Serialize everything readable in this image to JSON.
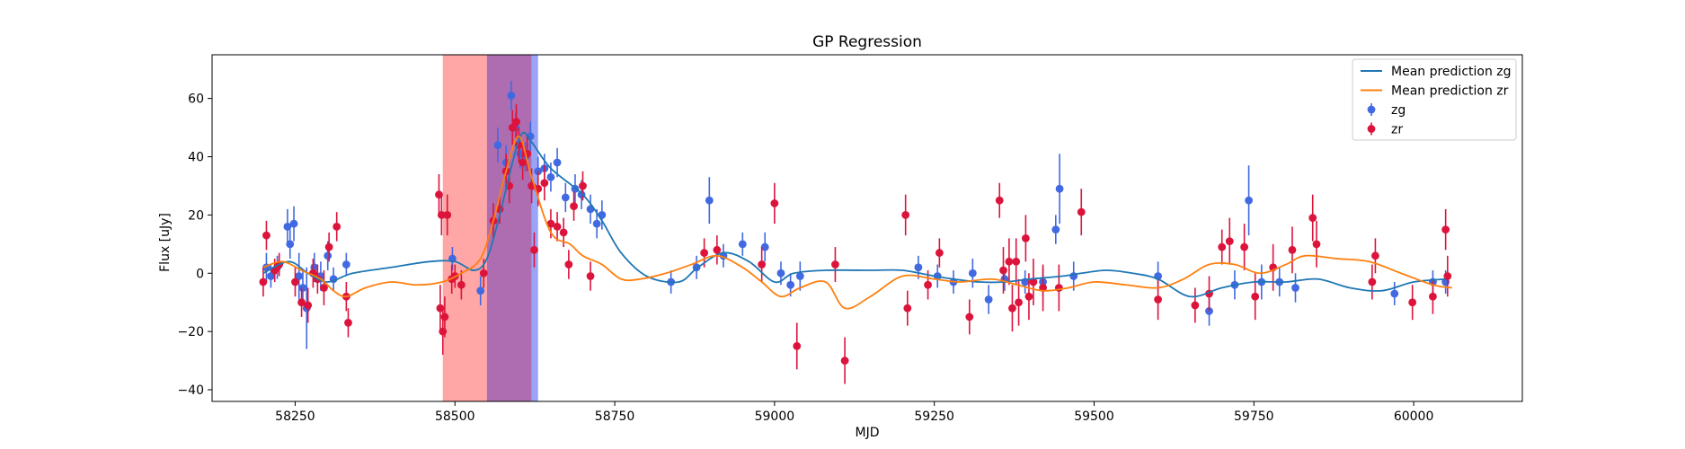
{
  "chart_data": {
    "type": "scatter",
    "title": "GP Regression",
    "xlabel": "MJD",
    "ylabel": "Flux [uJy]",
    "xlim": [
      58120,
      60170
    ],
    "ylim": [
      -44,
      75
    ],
    "xticks": [
      58250,
      58500,
      58750,
      59000,
      59250,
      59500,
      59750,
      60000
    ],
    "yticks": [
      -40,
      -20,
      0,
      20,
      40,
      60
    ],
    "grid": false,
    "legend_position": "top-right",
    "colors": {
      "zg_line": "#1f77b4",
      "zr_line": "#ff7f0e",
      "zg_points": "#4169e1",
      "zr_points": "#dc143c",
      "span_red": "#ff6b6b",
      "span_blue": "#6f7df2",
      "span_purple": "#8b2f8f"
    },
    "shaded_spans": [
      {
        "x0": 58481,
        "x1": 58550,
        "color": "#ff6b6b",
        "opacity": 0.6
      },
      {
        "x0": 58550,
        "x1": 58620,
        "color": "#8b2f8f",
        "opacity": 0.7
      },
      {
        "x0": 58620,
        "x1": 58630,
        "color": "#6f7df2",
        "opacity": 0.7
      }
    ],
    "series": [
      {
        "name": "Mean prediction zg",
        "kind": "line",
        "color": "#1f77b4",
        "x": [
          58200,
          58240,
          58270,
          58300,
          58340,
          58400,
          58460,
          58500,
          58530,
          58550,
          58570,
          58590,
          58605,
          58620,
          58650,
          58700,
          58730,
          58760,
          58800,
          58850,
          58880,
          58920,
          58960,
          59000,
          59030,
          59080,
          59150,
          59200,
          59250,
          59280,
          59320,
          59360,
          59400,
          59450,
          59480,
          59520,
          59560,
          59600,
          59650,
          59700,
          59750,
          59800,
          59850,
          59900,
          59950,
          60000,
          60050
        ],
        "y": [
          0,
          4,
          0,
          -3,
          0,
          2,
          4,
          4,
          1,
          5,
          20,
          38,
          48,
          45,
          36,
          27,
          18,
          7,
          -1,
          -3,
          2,
          7,
          4,
          -3,
          0,
          1,
          1,
          1,
          -1,
          -2,
          -3,
          -3,
          -2,
          -1,
          0,
          1,
          0,
          -2,
          -8,
          -5,
          -3,
          -3,
          -2,
          -5,
          -6,
          -3,
          -2
        ]
      },
      {
        "name": "Mean prediction zr",
        "kind": "line",
        "color": "#ff7f0e",
        "x": [
          58200,
          58230,
          58260,
          58290,
          58310,
          58330,
          58360,
          58400,
          58440,
          58480,
          58510,
          58540,
          58560,
          58580,
          58600,
          58620,
          58650,
          58680,
          58700,
          58730,
          58760,
          58790,
          58830,
          58870,
          58910,
          58950,
          58980,
          59010,
          59040,
          59080,
          59110,
          59150,
          59200,
          59250,
          59290,
          59340,
          59380,
          59420,
          59460,
          59500,
          59550,
          59600,
          59640,
          59680,
          59720,
          59760,
          59800,
          59830,
          59880,
          59930,
          59980,
          60030,
          60060
        ],
        "y": [
          2,
          4,
          1,
          -2,
          -6,
          -8,
          -5,
          -3,
          -4,
          -3,
          0,
          5,
          18,
          35,
          47,
          33,
          14,
          10,
          6,
          3,
          -2,
          -2,
          0,
          3,
          6,
          2,
          -3,
          -8,
          -5,
          -3,
          -12,
          -8,
          -1,
          -2,
          -3,
          -2,
          -4,
          -6,
          -5,
          -3,
          -4,
          -5,
          -2,
          3,
          3,
          0,
          3,
          6,
          5,
          4,
          0,
          -4,
          -5
        ]
      },
      {
        "name": "zg",
        "kind": "errorbar",
        "color": "#4169e1",
        "x": [
          58205,
          58212,
          58222,
          58238,
          58242,
          58248,
          58256,
          58262,
          58268,
          58280,
          58290,
          58301,
          58310,
          58330,
          58496,
          58540,
          58567,
          58580,
          58588,
          58595,
          58602,
          58610,
          58618,
          58630,
          58640,
          58650,
          58660,
          58673,
          58688,
          58698,
          58712,
          58722,
          58730,
          58838,
          58878,
          58898,
          58920,
          58950,
          58985,
          59010,
          59025,
          59040,
          59225,
          59255,
          59280,
          59310,
          59335,
          59360,
          59392,
          59420,
          59440,
          59446,
          59468,
          59600,
          59680,
          59720,
          59742,
          59762,
          59790,
          59815,
          59970,
          60030,
          60050
        ],
        "y": [
          2,
          -1,
          2,
          16,
          10,
          17,
          -1,
          -5,
          -12,
          2,
          -1,
          6,
          -2,
          3,
          5,
          -6,
          44,
          38,
          61,
          50,
          41,
          40,
          47,
          35,
          36,
          33,
          38,
          26,
          29,
          27,
          22,
          17,
          20,
          -3,
          2,
          25,
          6,
          10,
          9,
          0,
          -4,
          -1,
          2,
          -1,
          -3,
          0,
          -9,
          -2,
          -3,
          -3,
          15,
          29,
          -1,
          -1,
          -13,
          -4,
          25,
          -3,
          -3,
          -5,
          -7,
          -3,
          -3
        ],
        "yerr": [
          5,
          4,
          4,
          6,
          5,
          6,
          8,
          6,
          14,
          5,
          5,
          5,
          4,
          4,
          4,
          5,
          6,
          6,
          5,
          5,
          5,
          5,
          5,
          5,
          5,
          5,
          5,
          5,
          5,
          5,
          5,
          5,
          5,
          4,
          4,
          8,
          4,
          4,
          5,
          4,
          4,
          5,
          4,
          4,
          4,
          5,
          5,
          4,
          4,
          5,
          5,
          12,
          5,
          5,
          5,
          5,
          12,
          6,
          5,
          5,
          4,
          4,
          4
        ]
      },
      {
        "name": "zr",
        "kind": "errorbar",
        "color": "#dc143c",
        "x": [
          58200,
          58205,
          58218,
          58225,
          58250,
          58260,
          58270,
          58278,
          58285,
          58295,
          58303,
          58315,
          58330,
          58333,
          58475,
          58477,
          58479,
          58481,
          58484,
          58488,
          58495,
          58500,
          58510,
          58545,
          58560,
          58570,
          58580,
          58585,
          58590,
          58596,
          58600,
          58606,
          58613,
          58620,
          58624,
          58630,
          58640,
          58650,
          58660,
          58670,
          58678,
          58686,
          58700,
          58712,
          58890,
          58910,
          58980,
          59000,
          59035,
          59095,
          59110,
          59205,
          59208,
          59240,
          59258,
          59305,
          59352,
          59358,
          59367,
          59372,
          59378,
          59382,
          59393,
          59398,
          59405,
          59420,
          59445,
          59480,
          59600,
          59658,
          59680,
          59700,
          59712,
          59735,
          59752,
          59780,
          59810,
          59842,
          59848,
          59935,
          59940,
          59998,
          60030,
          60050,
          60053
        ],
        "y": [
          -3,
          13,
          1,
          3,
          -3,
          -10,
          -11,
          0,
          -2,
          -5,
          9,
          16,
          -8,
          -17,
          27,
          -12,
          20,
          -20,
          -15,
          20,
          -2,
          -1,
          -4,
          0,
          18,
          22,
          35,
          30,
          50,
          52,
          44,
          38,
          41,
          30,
          8,
          29,
          31,
          17,
          16,
          14,
          3,
          23,
          30,
          -1,
          7,
          8,
          3,
          24,
          -25,
          3,
          -30,
          20,
          -12,
          -4,
          7,
          -15,
          25,
          1,
          4,
          -12,
          4,
          -10,
          12,
          -8,
          -3,
          -5,
          -5,
          21,
          -9,
          -11,
          -7,
          9,
          11,
          9,
          -8,
          2,
          8,
          19,
          10,
          -3,
          6,
          -10,
          -8,
          15,
          -1
        ],
        "yerr": [
          5,
          5,
          4,
          4,
          5,
          5,
          6,
          5,
          5,
          6,
          5,
          5,
          5,
          5,
          7,
          8,
          7,
          8,
          7,
          7,
          5,
          4,
          5,
          5,
          6,
          5,
          6,
          6,
          6,
          6,
          6,
          6,
          6,
          6,
          6,
          6,
          6,
          5,
          5,
          5,
          5,
          5,
          5,
          5,
          5,
          5,
          6,
          7,
          8,
          6,
          8,
          7,
          6,
          5,
          5,
          6,
          6,
          8,
          8,
          8,
          8,
          8,
          8,
          8,
          8,
          8,
          8,
          8,
          7,
          6,
          6,
          6,
          8,
          8,
          8,
          8,
          8,
          8,
          8,
          6,
          6,
          6,
          6,
          7,
          7
        ]
      }
    ]
  }
}
